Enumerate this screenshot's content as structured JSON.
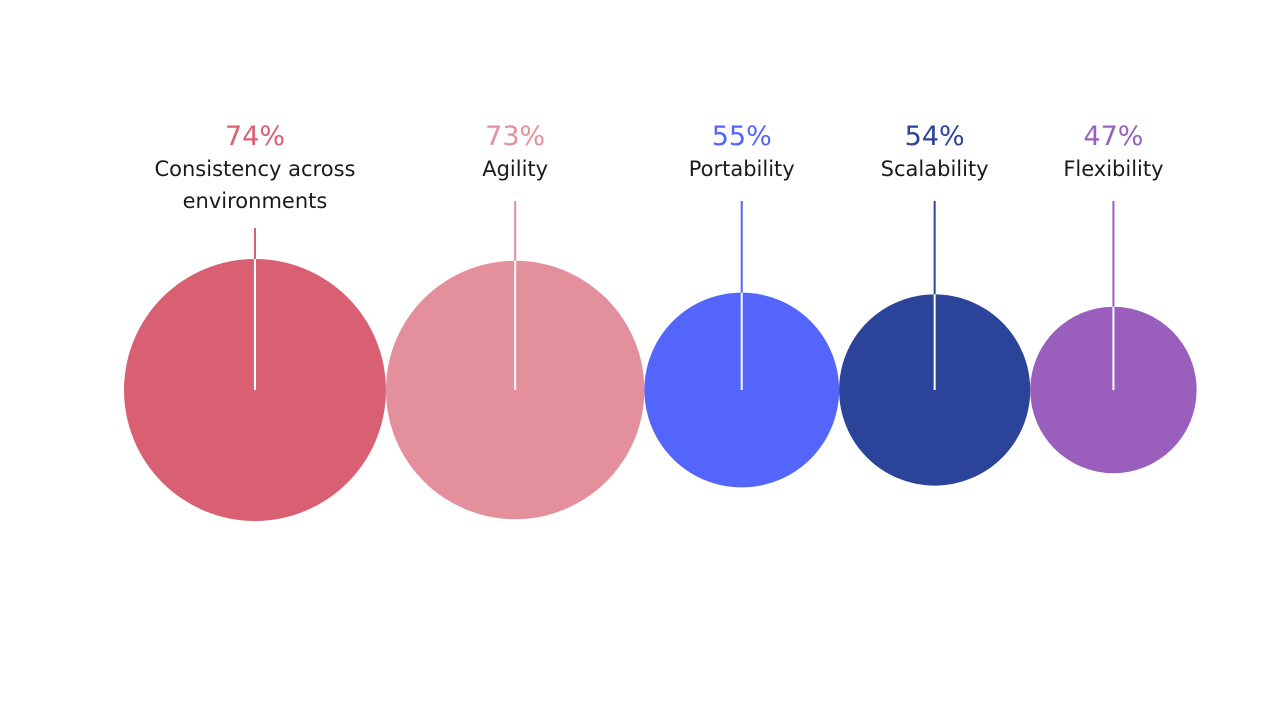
{
  "chart_data": {
    "type": "bubble",
    "title": "",
    "unit": "%",
    "categories": [
      "Consistency across environments",
      "Agility",
      "Portability",
      "Scalability",
      "Flexibility"
    ],
    "values": [
      74,
      73,
      55,
      54,
      47
    ],
    "value_labels": [
      "74%",
      "73%",
      "55%",
      "54%",
      "47%"
    ],
    "category_label_lines": [
      [
        "Consistency across",
        "environments"
      ],
      [
        "Agility"
      ],
      [
        "Portability"
      ],
      [
        "Scalability"
      ],
      [
        "Flexibility"
      ]
    ],
    "colors": [
      "#d96072",
      "#e4909c",
      "#5465fc",
      "#2b4399",
      "#9a5fbd"
    ],
    "legend": "none",
    "grid": false
  }
}
